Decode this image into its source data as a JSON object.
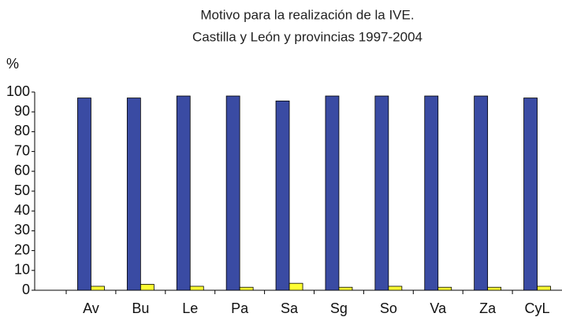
{
  "chart_data": {
    "type": "bar",
    "title": [
      "Motivo para la realización de la IVE.",
      "Castilla y León y provincias 1997-2004"
    ],
    "y_label": "%",
    "categories": [
      "Av",
      "Bu",
      "Le",
      "Pa",
      "Sa",
      "Sg",
      "So",
      "Va",
      "Za",
      "CyL"
    ],
    "series": [
      {
        "color": "#3a4ba3",
        "values": [
          97,
          97,
          98,
          98,
          95.5,
          98,
          98,
          98,
          98,
          97
        ]
      },
      {
        "color": "#ffff33",
        "values": [
          2,
          3,
          2,
          1.5,
          3.5,
          1.5,
          2,
          1.5,
          1.5,
          2
        ]
      }
    ],
    "ylim": [
      0,
      100
    ],
    "yticks": [
      0,
      10,
      20,
      30,
      40,
      50,
      60,
      70,
      80,
      90,
      100
    ],
    "grid": false
  }
}
